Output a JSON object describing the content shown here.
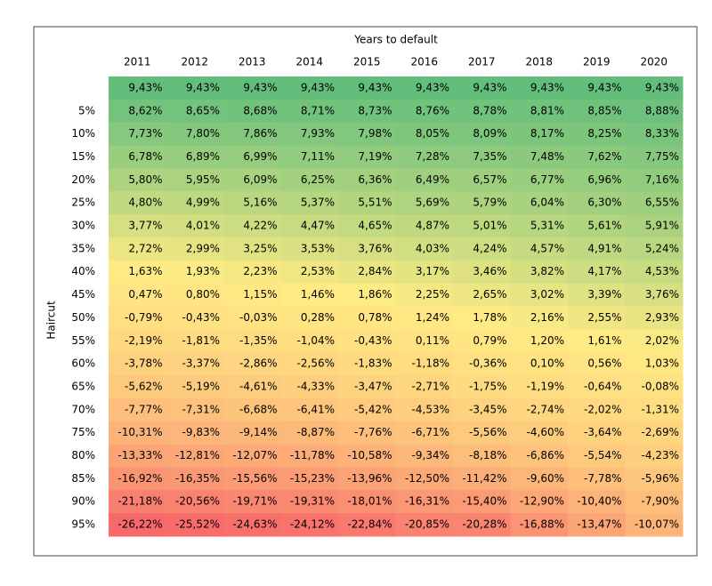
{
  "table": {
    "title": "Years to default",
    "row_axis_label": "Haircut",
    "columns": [
      "2011",
      "2012",
      "2013",
      "2014",
      "2015",
      "2016",
      "2017",
      "2018",
      "2019",
      "2020"
    ],
    "row_labels": [
      null,
      "5%",
      "10%",
      "15%",
      "20%",
      "25%",
      "30%",
      "35%",
      "40%",
      "45%",
      "50%",
      "55%",
      "60%",
      "65%",
      "70%",
      "75%",
      "80%",
      "85%",
      "90%",
      "95%"
    ],
    "rows": [
      [
        "9,43%",
        "9,43%",
        "9,43%",
        "9,43%",
        "9,43%",
        "9,43%",
        "9,43%",
        "9,43%",
        "9,43%",
        "9,43%"
      ],
      [
        "8,62%",
        "8,65%",
        "8,68%",
        "8,71%",
        "8,73%",
        "8,76%",
        "8,78%",
        "8,81%",
        "8,85%",
        "8,88%"
      ],
      [
        "7,73%",
        "7,80%",
        "7,86%",
        "7,93%",
        "7,98%",
        "8,05%",
        "8,09%",
        "8,17%",
        "8,25%",
        "8,33%"
      ],
      [
        "6,78%",
        "6,89%",
        "6,99%",
        "7,11%",
        "7,19%",
        "7,28%",
        "7,35%",
        "7,48%",
        "7,62%",
        "7,75%"
      ],
      [
        "5,80%",
        "5,95%",
        "6,09%",
        "6,25%",
        "6,36%",
        "6,49%",
        "6,57%",
        "6,77%",
        "6,96%",
        "7,16%"
      ],
      [
        "4,80%",
        "4,99%",
        "5,16%",
        "5,37%",
        "5,51%",
        "5,69%",
        "5,79%",
        "6,04%",
        "6,30%",
        "6,55%"
      ],
      [
        "3,77%",
        "4,01%",
        "4,22%",
        "4,47%",
        "4,65%",
        "4,87%",
        "5,01%",
        "5,31%",
        "5,61%",
        "5,91%"
      ],
      [
        "2,72%",
        "2,99%",
        "3,25%",
        "3,53%",
        "3,76%",
        "4,03%",
        "4,24%",
        "4,57%",
        "4,91%",
        "5,24%"
      ],
      [
        "1,63%",
        "1,93%",
        "2,23%",
        "2,53%",
        "2,84%",
        "3,17%",
        "3,46%",
        "3,82%",
        "4,17%",
        "4,53%"
      ],
      [
        "0,47%",
        "0,80%",
        "1,15%",
        "1,46%",
        "1,86%",
        "2,25%",
        "2,65%",
        "3,02%",
        "3,39%",
        "3,76%"
      ],
      [
        "-0,79%",
        "-0,43%",
        "-0,03%",
        "0,28%",
        "0,78%",
        "1,24%",
        "1,78%",
        "2,16%",
        "2,55%",
        "2,93%"
      ],
      [
        "-2,19%",
        "-1,81%",
        "-1,35%",
        "-1,04%",
        "-0,43%",
        "0,11%",
        "0,79%",
        "1,20%",
        "1,61%",
        "2,02%"
      ],
      [
        "-3,78%",
        "-3,37%",
        "-2,86%",
        "-2,56%",
        "-1,83%",
        "-1,18%",
        "-0,36%",
        "0,10%",
        "0,56%",
        "1,03%"
      ],
      [
        "-5,62%",
        "-5,19%",
        "-4,61%",
        "-4,33%",
        "-3,47%",
        "-2,71%",
        "-1,75%",
        "-1,19%",
        "-0,64%",
        "-0,08%"
      ],
      [
        "-7,77%",
        "-7,31%",
        "-6,68%",
        "-6,41%",
        "-5,42%",
        "-4,53%",
        "-3,45%",
        "-2,74%",
        "-2,02%",
        "-1,31%"
      ],
      [
        "-10,31%",
        "-9,83%",
        "-9,14%",
        "-8,87%",
        "-7,76%",
        "-6,71%",
        "-5,56%",
        "-4,60%",
        "-3,64%",
        "-2,69%"
      ],
      [
        "-13,33%",
        "-12,81%",
        "-12,07%",
        "-11,78%",
        "-10,58%",
        "-9,34%",
        "-8,18%",
        "-6,86%",
        "-5,54%",
        "-4,23%"
      ],
      [
        "-16,92%",
        "-16,35%",
        "-15,56%",
        "-15,23%",
        "-13,96%",
        "-12,50%",
        "-11,42%",
        "-9,60%",
        "-7,78%",
        "-5,96%"
      ],
      [
        "-21,18%",
        "-20,56%",
        "-19,71%",
        "-19,31%",
        "-18,01%",
        "-16,31%",
        "-15,40%",
        "-12,90%",
        "-10,40%",
        "-7,90%"
      ],
      [
        "-26,22%",
        "-25,52%",
        "-24,63%",
        "-24,12%",
        "-22,84%",
        "-20,85%",
        "-20,28%",
        "-16,88%",
        "-13,47%",
        "-10,07%"
      ]
    ]
  },
  "color_scale": {
    "low": "#f8696b",
    "mid": "#ffeb84",
    "high": "#63be7b"
  }
}
